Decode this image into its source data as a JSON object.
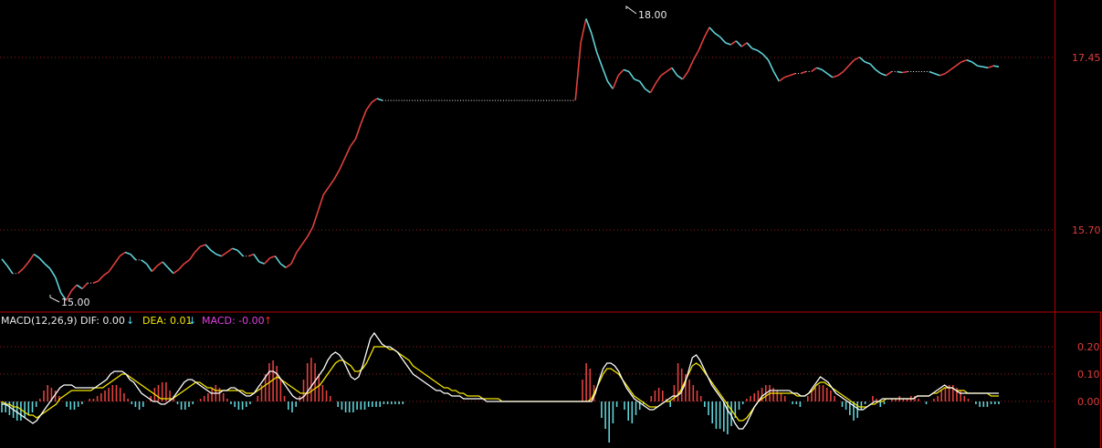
{
  "colors": {
    "background": "#000000",
    "frame": "#b40000",
    "grid_dotted": "#9a1e1e",
    "up": "#e0413e",
    "down": "#5fd3d8",
    "price_text": "#e8e8e8",
    "axis_text": "#e03c3c",
    "dif": "#ffffff",
    "dea": "#f5e600",
    "macd_label": "#e040e0",
    "arrow_down": "#54d4f0",
    "arrow_up": "#f02828"
  },
  "price_panel": {
    "annotations": {
      "high": "18.00",
      "low": "15.00"
    },
    "axis_ticks": [
      "17.45",
      "15.70"
    ]
  },
  "macd_panel": {
    "header": {
      "name": "MACD(12,26,9)",
      "dif_label": "DIF: 0.00",
      "dea_label": "DEA: 0.01",
      "macd_label": "MACD: -0.00"
    },
    "axis_ticks": [
      "0.20",
      "0.10",
      "0.00"
    ]
  },
  "chart_data": [
    {
      "type": "line",
      "title": "",
      "ylim": [
        14.9,
        18.15
      ],
      "grid": true,
      "series": [
        {
          "values": [
            15.45,
            15.38,
            15.3,
            15.3,
            15.35,
            15.42,
            15.5,
            15.46,
            15.4,
            15.35,
            15.26,
            15.1,
            15.02,
            15.12,
            15.18,
            15.14,
            15.2,
            15.2,
            15.22,
            15.28,
            15.32,
            15.4,
            15.48,
            15.52,
            15.5,
            15.44,
            15.44,
            15.4,
            15.32,
            15.38,
            15.42,
            15.36,
            15.3,
            15.34,
            15.4,
            15.44,
            15.52,
            15.58,
            15.6,
            15.54,
            15.5,
            15.48,
            15.52,
            15.56,
            15.54,
            15.48,
            15.48,
            15.5,
            15.42,
            15.4,
            15.46,
            15.48,
            15.4,
            15.36,
            15.4,
            15.52,
            15.6,
            15.68,
            15.78,
            15.95,
            16.12,
            16.2,
            16.28,
            16.38,
            16.5,
            16.62,
            16.7,
            16.86,
            17.0,
            17.08,
            17.12,
            17.1,
            17.1,
            17.1,
            17.1,
            17.1,
            17.1,
            17.1,
            17.1,
            17.1,
            17.1,
            17.1,
            17.1,
            17.1,
            17.1,
            17.1,
            17.1,
            17.1,
            17.1,
            17.1,
            17.1,
            17.1,
            17.1,
            17.1,
            17.1,
            17.1,
            17.1,
            17.1,
            17.1,
            17.1,
            17.1,
            17.1,
            17.1,
            17.1,
            17.1,
            17.1,
            17.1,
            17.1,
            17.7,
            17.95,
            17.8,
            17.6,
            17.45,
            17.3,
            17.22,
            17.36,
            17.42,
            17.4,
            17.32,
            17.3,
            17.22,
            17.18,
            17.28,
            17.36,
            17.4,
            17.44,
            17.36,
            17.32,
            17.4,
            17.52,
            17.62,
            17.75,
            17.86,
            17.8,
            17.76,
            17.7,
            17.68,
            17.72,
            17.66,
            17.7,
            17.64,
            17.62,
            17.58,
            17.52,
            17.4,
            17.3,
            17.34,
            17.36,
            17.38,
            17.38,
            17.4,
            17.4,
            17.44,
            17.42,
            17.38,
            17.34,
            17.36,
            17.4,
            17.46,
            17.52,
            17.55,
            17.5,
            17.48,
            17.42,
            17.38,
            17.36,
            17.4,
            17.4,
            17.39,
            17.4,
            17.4,
            17.4,
            17.4,
            17.4,
            17.38,
            17.36,
            17.38,
            17.42,
            17.46,
            17.5,
            17.52,
            17.5,
            17.46,
            17.45,
            17.44,
            17.46,
            17.45
          ]
        }
      ]
    },
    {
      "type": "bar",
      "title": "",
      "ylim": [
        -0.16,
        0.29
      ],
      "grid": true,
      "series": [
        {
          "name": "MACD",
          "values": [
            -0.04,
            -0.04,
            -0.05,
            -0.06,
            -0.07,
            -0.07,
            -0.06,
            -0.05,
            -0.04,
            -0.02,
            0.01,
            0.04,
            0.06,
            0.05,
            0.04,
            0.02,
            0.0,
            -0.02,
            -0.03,
            -0.03,
            -0.02,
            -0.01,
            0.0,
            0.01,
            0.01,
            0.02,
            0.03,
            0.04,
            0.05,
            0.06,
            0.06,
            0.05,
            0.03,
            0.01,
            -0.01,
            -0.02,
            -0.03,
            -0.02,
            0.0,
            0.02,
            0.05,
            0.06,
            0.07,
            0.07,
            0.04,
            0.02,
            -0.01,
            -0.03,
            -0.03,
            -0.02,
            -0.01,
            0.0,
            0.01,
            0.02,
            0.03,
            0.05,
            0.06,
            0.05,
            0.03,
            0.01,
            -0.01,
            -0.02,
            -0.03,
            -0.03,
            -0.02,
            -0.01,
            0.0,
            0.02,
            0.06,
            0.1,
            0.14,
            0.15,
            0.13,
            0.08,
            0.02,
            -0.03,
            -0.04,
            -0.02,
            0.02,
            0.08,
            0.14,
            0.16,
            0.14,
            0.1,
            0.06,
            0.04,
            0.02,
            0.0,
            -0.02,
            -0.03,
            -0.04,
            -0.04,
            -0.04,
            -0.03,
            -0.03,
            -0.03,
            -0.02,
            -0.02,
            -0.02,
            -0.02,
            -0.01,
            -0.01,
            -0.01,
            -0.01,
            -0.01,
            -0.01,
            0.0,
            0.0,
            0.0,
            0.0,
            0.0,
            0.0,
            0.0,
            0.0,
            0.0,
            0.0,
            0.0,
            0.0,
            0.0,
            0.0,
            0.0,
            0.0,
            0.0,
            0.0,
            0.0,
            0.0,
            0.0,
            0.0,
            0.0,
            0.0,
            0.0,
            0.0,
            0.0,
            0.0,
            0.0,
            0.0,
            0.0,
            0.0,
            0.0,
            0.0,
            0.0,
            0.0,
            0.0,
            0.0,
            0.0,
            0.0,
            0.0,
            0.0,
            0.0,
            0.0,
            0.0,
            0.0,
            0.08,
            0.14,
            0.12,
            0.06,
            0.0,
            -0.06,
            -0.1,
            -0.15,
            -0.08,
            -0.02,
            0.0,
            -0.03,
            -0.07,
            -0.08,
            -0.05,
            -0.03,
            -0.01,
            0.0,
            0.02,
            0.04,
            0.05,
            0.04,
            0.01,
            -0.02,
            0.06,
            0.14,
            0.12,
            0.1,
            0.08,
            0.06,
            0.04,
            0.02,
            -0.02,
            -0.05,
            -0.08,
            -0.1,
            -0.1,
            -0.11,
            -0.12,
            -0.09,
            -0.06,
            -0.03,
            -0.01,
            0.01,
            0.02,
            0.03,
            0.04,
            0.05,
            0.06,
            0.06,
            0.05,
            0.04,
            0.03,
            0.02,
            0.0,
            -0.01,
            -0.01,
            -0.02,
            0.0,
            0.02,
            0.04,
            0.05,
            0.06,
            0.06,
            0.05,
            0.04,
            0.02,
            0.0,
            -0.02,
            -0.03,
            -0.05,
            -0.07,
            -0.06,
            -0.03,
            -0.01,
            0.0,
            0.02,
            0.01,
            -0.02,
            -0.01,
            0.0,
            0.01,
            0.01,
            0.02,
            0.01,
            0.01,
            0.02,
            0.02,
            0.01,
            0.0,
            -0.01,
            0.0,
            0.01,
            0.02,
            0.04,
            0.05,
            0.06,
            0.06,
            0.05,
            0.04,
            0.02,
            0.01,
            0.0,
            -0.01,
            -0.02,
            -0.02,
            -0.02,
            -0.01,
            -0.01,
            -0.01
          ]
        },
        {
          "name": "DIF",
          "values": [
            -0.01,
            -0.01,
            -0.02,
            -0.03,
            -0.04,
            -0.05,
            -0.06,
            -0.07,
            -0.08,
            -0.07,
            -0.05,
            -0.03,
            -0.01,
            0.01,
            0.03,
            0.05,
            0.06,
            0.06,
            0.06,
            0.05,
            0.05,
            0.05,
            0.05,
            0.05,
            0.05,
            0.06,
            0.07,
            0.08,
            0.1,
            0.11,
            0.11,
            0.11,
            0.1,
            0.08,
            0.07,
            0.05,
            0.03,
            0.02,
            0.01,
            0.0,
            0.0,
            -0.01,
            -0.01,
            0.0,
            0.01,
            0.03,
            0.05,
            0.07,
            0.08,
            0.08,
            0.07,
            0.06,
            0.05,
            0.04,
            0.03,
            0.03,
            0.03,
            0.04,
            0.04,
            0.05,
            0.05,
            0.04,
            0.03,
            0.02,
            0.02,
            0.03,
            0.05,
            0.07,
            0.09,
            0.11,
            0.11,
            0.1,
            0.08,
            0.06,
            0.04,
            0.02,
            0.01,
            0.01,
            0.02,
            0.04,
            0.06,
            0.08,
            0.1,
            0.12,
            0.15,
            0.17,
            0.18,
            0.17,
            0.15,
            0.12,
            0.09,
            0.08,
            0.09,
            0.13,
            0.18,
            0.23,
            0.25,
            0.23,
            0.21,
            0.2,
            0.2,
            0.19,
            0.18,
            0.16,
            0.14,
            0.12,
            0.1,
            0.09,
            0.08,
            0.07,
            0.06,
            0.05,
            0.04,
            0.04,
            0.03,
            0.03,
            0.02,
            0.02,
            0.02,
            0.01,
            0.01,
            0.01,
            0.01,
            0.01,
            0.01,
            0.0,
            0.0,
            0.0,
            0.0,
            0.0,
            0.0,
            0.0,
            0.0,
            0.0,
            0.0,
            0.0,
            0.0,
            0.0,
            0.0,
            0.0,
            0.0,
            0.0,
            0.0,
            0.0,
            0.0,
            0.0,
            0.0,
            0.0,
            0.0,
            0.0,
            0.0,
            0.0,
            0.0,
            0.03,
            0.08,
            0.12,
            0.14,
            0.14,
            0.13,
            0.11,
            0.08,
            0.05,
            0.03,
            0.01,
            0.0,
            -0.01,
            -0.02,
            -0.03,
            -0.03,
            -0.02,
            -0.01,
            0.0,
            0.01,
            0.02,
            0.02,
            0.03,
            0.06,
            0.11,
            0.16,
            0.17,
            0.15,
            0.12,
            0.09,
            0.06,
            0.04,
            0.02,
            0.0,
            -0.03,
            -0.05,
            -0.08,
            -0.1,
            -0.1,
            -0.08,
            -0.05,
            -0.02,
            0.0,
            0.02,
            0.03,
            0.04,
            0.04,
            0.04,
            0.04,
            0.04,
            0.04,
            0.03,
            0.03,
            0.02,
            0.02,
            0.03,
            0.05,
            0.07,
            0.09,
            0.08,
            0.07,
            0.05,
            0.03,
            0.02,
            0.01,
            0.0,
            -0.01,
            -0.02,
            -0.03,
            -0.03,
            -0.02,
            -0.01,
            0.0,
            0.0,
            0.01,
            0.01,
            0.01,
            0.01,
            0.01,
            0.01,
            0.01,
            0.01,
            0.01,
            0.02,
            0.02,
            0.02,
            0.02,
            0.03,
            0.04,
            0.05,
            0.06,
            0.05,
            0.05,
            0.04,
            0.03,
            0.03,
            0.03,
            0.03,
            0.03,
            0.03,
            0.03,
            0.03,
            0.03,
            0.03,
            0.03
          ]
        },
        {
          "name": "DEA",
          "values": [
            0.0,
            -0.01,
            -0.01,
            -0.02,
            -0.02,
            -0.03,
            -0.04,
            -0.05,
            -0.05,
            -0.06,
            -0.05,
            -0.04,
            -0.03,
            -0.02,
            -0.01,
            0.01,
            0.02,
            0.03,
            0.04,
            0.04,
            0.04,
            0.04,
            0.04,
            0.04,
            0.05,
            0.05,
            0.05,
            0.06,
            0.07,
            0.08,
            0.09,
            0.1,
            0.1,
            0.09,
            0.08,
            0.07,
            0.06,
            0.05,
            0.04,
            0.03,
            0.02,
            0.01,
            0.01,
            0.01,
            0.01,
            0.02,
            0.03,
            0.04,
            0.05,
            0.06,
            0.07,
            0.07,
            0.06,
            0.05,
            0.05,
            0.04,
            0.04,
            0.04,
            0.04,
            0.04,
            0.04,
            0.04,
            0.04,
            0.03,
            0.03,
            0.03,
            0.04,
            0.05,
            0.06,
            0.07,
            0.08,
            0.09,
            0.08,
            0.07,
            0.06,
            0.05,
            0.04,
            0.03,
            0.03,
            0.03,
            0.04,
            0.05,
            0.06,
            0.08,
            0.1,
            0.12,
            0.14,
            0.15,
            0.15,
            0.14,
            0.13,
            0.11,
            0.11,
            0.12,
            0.14,
            0.17,
            0.2,
            0.2,
            0.2,
            0.2,
            0.19,
            0.19,
            0.18,
            0.17,
            0.16,
            0.15,
            0.13,
            0.12,
            0.11,
            0.1,
            0.09,
            0.08,
            0.07,
            0.06,
            0.05,
            0.05,
            0.04,
            0.04,
            0.03,
            0.03,
            0.02,
            0.02,
            0.02,
            0.02,
            0.01,
            0.01,
            0.01,
            0.01,
            0.01,
            0.0,
            0.0,
            0.0,
            0.0,
            0.0,
            0.0,
            0.0,
            0.0,
            0.0,
            0.0,
            0.0,
            0.0,
            0.0,
            0.0,
            0.0,
            0.0,
            0.0,
            0.0,
            0.0,
            0.0,
            0.0,
            0.0,
            0.0,
            0.01,
            0.04,
            0.07,
            0.1,
            0.12,
            0.12,
            0.11,
            0.1,
            0.08,
            0.06,
            0.04,
            0.02,
            0.01,
            0.0,
            -0.01,
            -0.02,
            -0.02,
            -0.02,
            -0.01,
            0.0,
            0.0,
            0.01,
            0.02,
            0.04,
            0.07,
            0.1,
            0.13,
            0.14,
            0.13,
            0.11,
            0.09,
            0.07,
            0.05,
            0.03,
            0.01,
            -0.01,
            -0.03,
            -0.05,
            -0.07,
            -0.07,
            -0.06,
            -0.04,
            -0.02,
            0.0,
            0.01,
            0.02,
            0.03,
            0.03,
            0.03,
            0.03,
            0.03,
            0.03,
            0.03,
            0.02,
            0.02,
            0.02,
            0.03,
            0.04,
            0.06,
            0.07,
            0.07,
            0.06,
            0.05,
            0.04,
            0.03,
            0.02,
            0.01,
            0.0,
            -0.01,
            -0.02,
            -0.02,
            -0.02,
            -0.01,
            -0.01,
            0.0,
            0.0,
            0.01,
            0.01,
            0.01,
            0.01,
            0.01,
            0.01,
            0.01,
            0.01,
            0.02,
            0.02,
            0.02,
            0.02,
            0.03,
            0.03,
            0.04,
            0.05,
            0.05,
            0.05,
            0.04,
            0.04,
            0.04,
            0.03,
            0.03,
            0.03,
            0.03,
            0.03,
            0.03,
            0.02,
            0.02,
            0.02
          ]
        }
      ]
    }
  ]
}
